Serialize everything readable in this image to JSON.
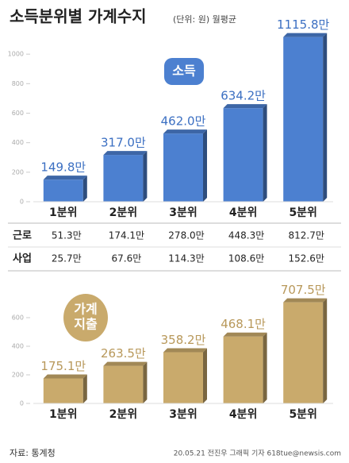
{
  "title": "소득분위별 가계수지",
  "subtitle": "(단위: 원) 월평균",
  "chart_data": [
    {
      "type": "bar",
      "label": [
        "소득"
      ],
      "categories": [
        "1분위",
        "2분위",
        "3분위",
        "4분위",
        "5분위"
      ],
      "values": [
        149.8,
        317.0,
        462.0,
        634.2,
        1115.8
      ],
      "value_labels": [
        "149.8만",
        "317.0만",
        "462.0만",
        "634.2만",
        "1115.8만"
      ],
      "color": "#4c80d0",
      "label_color": "#3b6fc2",
      "ylim": [
        0,
        1200
      ],
      "yticks": [
        0,
        200,
        400,
        600,
        800,
        1000
      ],
      "grid": false
    },
    {
      "type": "bar",
      "label": [
        "가계",
        "지출"
      ],
      "categories": [
        "1분위",
        "2분위",
        "3분위",
        "4분위",
        "5분위"
      ],
      "values": [
        175.1,
        263.5,
        358.2,
        468.1,
        707.5
      ],
      "value_labels": [
        "175.1만",
        "263.5만",
        "358.2만",
        "468.1만",
        "707.5만"
      ],
      "color": "#c9aa6c",
      "label_color": "#b8985a",
      "ylim": [
        0,
        800
      ],
      "yticks": [
        0,
        200,
        400,
        600
      ],
      "grid": false
    }
  ],
  "table": {
    "rows": [
      [
        "근로",
        "51.3만",
        "174.1만",
        "278.0만",
        "448.3만",
        "812.7만"
      ],
      [
        "사업",
        "25.7만",
        "67.6만",
        "114.3만",
        "108.6만",
        "152.6만"
      ]
    ]
  },
  "source": "자료: 통계청",
  "credit": "20.05.21 전진우 그래픽 기자 618tue@newsis.com"
}
